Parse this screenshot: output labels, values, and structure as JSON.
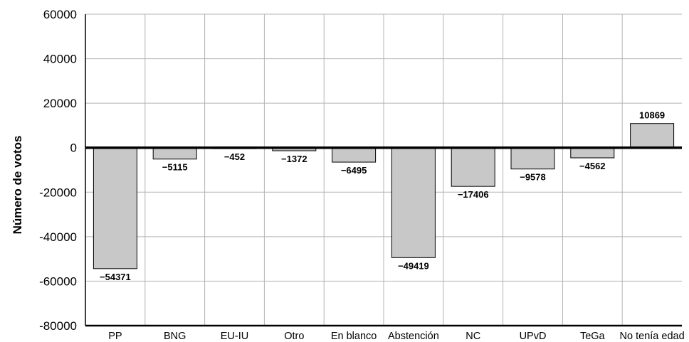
{
  "chart_data": {
    "type": "bar",
    "title": "",
    "xlabel": "",
    "ylabel": "Número de votos",
    "ylim": [
      -80000,
      60000
    ],
    "yticks": [
      -80000,
      -60000,
      -40000,
      -20000,
      0,
      20000,
      40000,
      60000
    ],
    "ytick_labels": [
      "-80000",
      "-60000",
      "-40000",
      "-20000",
      "0",
      "20000",
      "40000",
      "60000"
    ],
    "grid": true,
    "categories": [
      "PP",
      "BNG",
      "EU-IU",
      "Otro",
      "En blanco",
      "Abstención",
      "NC",
      "UPvD",
      "TeGa",
      "No tenía edad"
    ],
    "values": [
      -54371,
      -5115,
      -452,
      -1372,
      -6495,
      -49419,
      -17406,
      -9578,
      -4562,
      10869
    ],
    "data_labels": [
      "−54371",
      "−5115",
      "−452",
      "−1372",
      "−6495",
      "−49419",
      "−17406",
      "−9578",
      "−4562",
      "10869"
    ],
    "colors": {
      "bar_fill": "#c8c8c8",
      "bar_stroke": "#000000",
      "grid": "#b3b3b3",
      "axis": "#000000"
    }
  }
}
